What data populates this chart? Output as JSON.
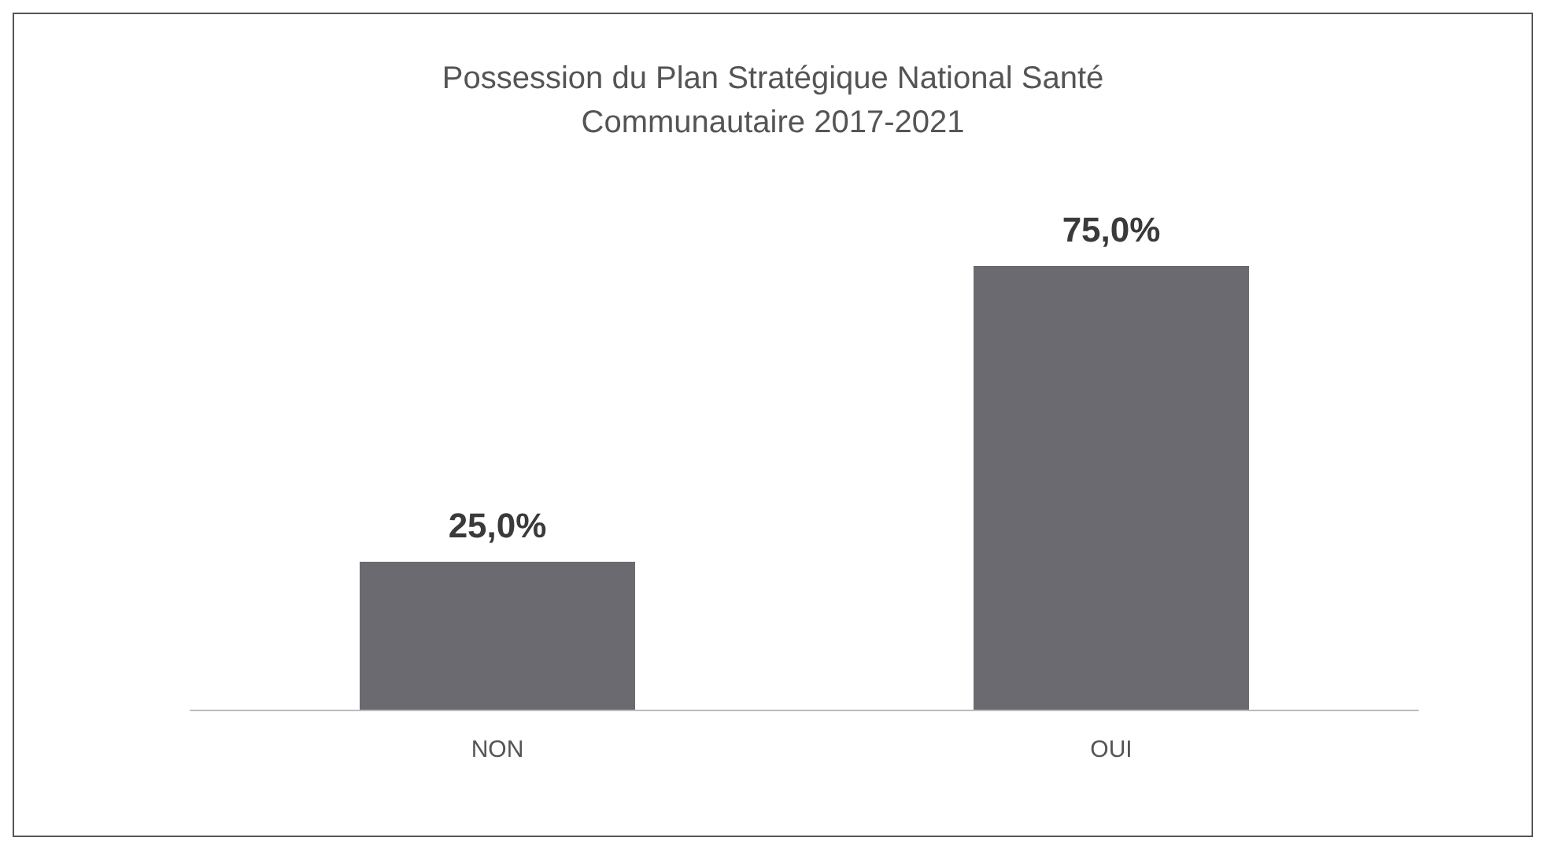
{
  "chart_data": {
    "type": "bar",
    "title": "Possession du Plan Stratégique National Santé\nCommunautaire 2017-2021",
    "categories": [
      "NON",
      "OUI"
    ],
    "values": [
      25,
      75
    ],
    "color": "#6a6a70",
    "value_labels": [
      "25,0%",
      "75,0%"
    ]
  }
}
